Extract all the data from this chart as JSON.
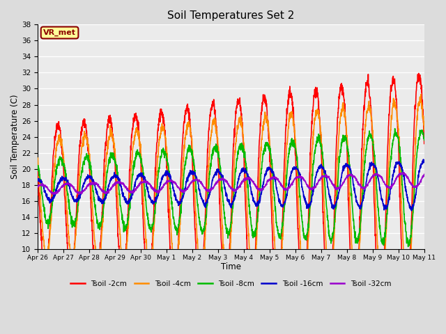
{
  "title": "Soil Temperatures Set 2",
  "xlabel": "Time",
  "ylabel": "Soil Temperature (C)",
  "ylim": [
    10,
    38
  ],
  "yticks": [
    10,
    12,
    14,
    16,
    18,
    20,
    22,
    24,
    26,
    28,
    30,
    32,
    34,
    36,
    38
  ],
  "date_labels": [
    "Apr 26",
    "Apr 27",
    "Apr 28",
    "Apr 29",
    "Apr 30",
    "May 1",
    "May 2",
    "May 3",
    "May 4",
    "May 5",
    "May 6",
    "May 7",
    "May 8",
    "May 9",
    "May 10",
    "May 11"
  ],
  "series_names": [
    "Tsoil -2cm",
    "Tsoil -4cm",
    "Tsoil -8cm",
    "Tsoil -16cm",
    "Tsoil -32cm"
  ],
  "colors": [
    "#FF0000",
    "#FF8C00",
    "#00BB00",
    "#0000CC",
    "#9900CC"
  ],
  "lws": [
    1.2,
    1.2,
    1.2,
    1.2,
    1.2
  ],
  "annotation_text": "VR_met",
  "annotation_color": "#8B0000",
  "annotation_bg": "#FFFF99",
  "annotation_border": "#8B0000",
  "bg_color": "#DCDCDC",
  "plot_bg": "#EBEBEB",
  "grid_color": "#FFFFFF",
  "n_days": 16,
  "pts_per_day": 144
}
